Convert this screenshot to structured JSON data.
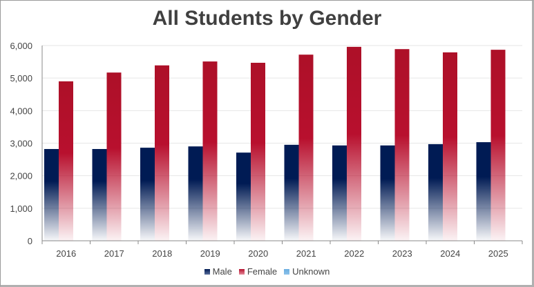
{
  "chart_data": {
    "type": "bar",
    "title": "All Students by Gender",
    "categories": [
      "2016",
      "2017",
      "2018",
      "2019",
      "2020",
      "2021",
      "2022",
      "2023",
      "2024",
      "2025"
    ],
    "series": [
      {
        "name": "Male",
        "color": "#001b54",
        "values": [
          2820,
          2820,
          2860,
          2900,
          2710,
          2950,
          2930,
          2930,
          2970,
          3030
        ]
      },
      {
        "name": "Female",
        "color": "#b5112d",
        "values": [
          4900,
          5170,
          5390,
          5510,
          5470,
          5720,
          5960,
          5890,
          5790,
          5870
        ]
      },
      {
        "name": "Unknown",
        "color": "#6aaee0",
        "values": [
          0,
          0,
          0,
          0,
          0,
          0,
          0,
          0,
          0,
          0
        ]
      }
    ],
    "ylim": [
      0,
      6000
    ],
    "yticks": [
      "0",
      "1,000",
      "2,000",
      "3,000",
      "4,000",
      "5,000",
      "6,000"
    ],
    "grid": true,
    "legend": "bottom"
  }
}
